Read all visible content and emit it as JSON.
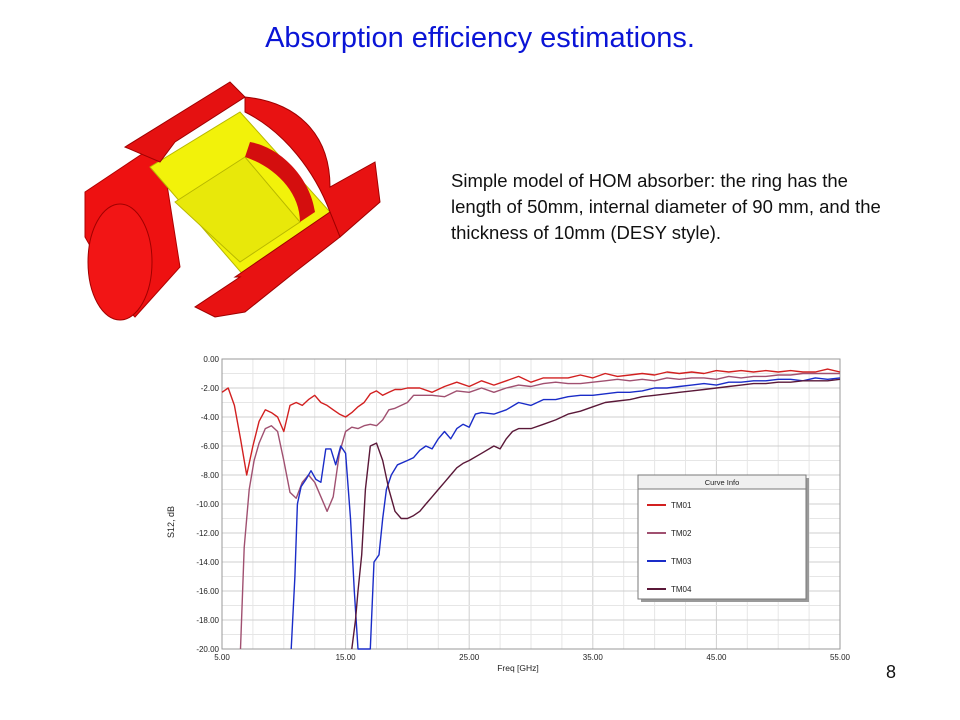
{
  "slide": {
    "title": "Absorption efficiency estimations.",
    "description": "Simple model of HOM absorber: the ring has the length of 50mm, internal diameter of 90 mm, and the thickness of 10mm (DESY style).",
    "page_number": "8"
  },
  "model": {
    "icon": "hom-absorber-cutaway-model",
    "colors": {
      "beampipe": "#ee1111",
      "absorber": "#f2f20a"
    }
  },
  "chart_data": {
    "type": "line",
    "xlabel": "Freq [GHz]",
    "ylabel": "S12, dB",
    "xlim": [
      5,
      55
    ],
    "ylim": [
      -20,
      0
    ],
    "x_ticks": [
      "5.00",
      "15.00",
      "25.00",
      "35.00",
      "45.00",
      "55.00"
    ],
    "y_ticks": [
      "0.00",
      "-2.00",
      "-4.00",
      "-6.00",
      "-8.00",
      "-10.00",
      "-12.00",
      "-14.00",
      "-16.00",
      "-18.00",
      "-20.00"
    ],
    "grid": true,
    "legend": {
      "title": "Curve Info",
      "placement": "center-right"
    },
    "series": [
      {
        "name": "TM01",
        "color": "#d22020",
        "points": [
          [
            5,
            -2.3
          ],
          [
            5.5,
            -2.0
          ],
          [
            6,
            -3.2
          ],
          [
            6.5,
            -5.5
          ],
          [
            7,
            -8.0
          ],
          [
            7.5,
            -6.0
          ],
          [
            8,
            -4.3
          ],
          [
            8.5,
            -3.5
          ],
          [
            9,
            -3.7
          ],
          [
            9.5,
            -4.0
          ],
          [
            10,
            -5.0
          ],
          [
            10.5,
            -3.2
          ],
          [
            11,
            -3.0
          ],
          [
            11.5,
            -3.2
          ],
          [
            12,
            -2.8
          ],
          [
            12.5,
            -2.5
          ],
          [
            13,
            -3.0
          ],
          [
            13.5,
            -3.2
          ],
          [
            14,
            -3.5
          ],
          [
            14.5,
            -3.8
          ],
          [
            15,
            -4.0
          ],
          [
            15.5,
            -3.7
          ],
          [
            16,
            -3.3
          ],
          [
            16.5,
            -3.0
          ],
          [
            17,
            -2.4
          ],
          [
            17.5,
            -2.2
          ],
          [
            18,
            -2.5
          ],
          [
            18.5,
            -2.3
          ],
          [
            19,
            -2.1
          ],
          [
            19.5,
            -2.1
          ],
          [
            20,
            -2.0
          ],
          [
            21,
            -2.0
          ],
          [
            22,
            -2.3
          ],
          [
            23,
            -1.9
          ],
          [
            24,
            -1.6
          ],
          [
            25,
            -1.9
          ],
          [
            26,
            -1.5
          ],
          [
            27,
            -1.8
          ],
          [
            28,
            -1.5
          ],
          [
            29,
            -1.2
          ],
          [
            30,
            -1.6
          ],
          [
            31,
            -1.3
          ],
          [
            32,
            -1.3
          ],
          [
            33,
            -1.3
          ],
          [
            34,
            -1.1
          ],
          [
            35,
            -1.3
          ],
          [
            36,
            -1.0
          ],
          [
            37,
            -1.2
          ],
          [
            38,
            -1.1
          ],
          [
            39,
            -1.0
          ],
          [
            40,
            -1.1
          ],
          [
            41,
            -0.9
          ],
          [
            42,
            -1.0
          ],
          [
            43,
            -0.9
          ],
          [
            44,
            -1.0
          ],
          [
            45,
            -0.8
          ],
          [
            46,
            -0.9
          ],
          [
            47,
            -0.8
          ],
          [
            48,
            -0.9
          ],
          [
            49,
            -0.8
          ],
          [
            50,
            -0.9
          ],
          [
            51,
            -0.8
          ],
          [
            52,
            -0.9
          ],
          [
            53,
            -0.9
          ],
          [
            54,
            -0.7
          ],
          [
            55,
            -0.9
          ]
        ]
      },
      {
        "name": "TM02",
        "color": "#a05070",
        "points": [
          [
            6.5,
            -20.0
          ],
          [
            6.8,
            -13.0
          ],
          [
            7.2,
            -9.0
          ],
          [
            7.6,
            -7.0
          ],
          [
            8,
            -5.8
          ],
          [
            8.5,
            -4.8
          ],
          [
            9,
            -4.6
          ],
          [
            9.5,
            -5.0
          ],
          [
            10,
            -7.0
          ],
          [
            10.5,
            -9.2
          ],
          [
            11,
            -9.6
          ],
          [
            11.5,
            -8.5
          ],
          [
            12,
            -8.0
          ],
          [
            12.5,
            -8.5
          ],
          [
            13,
            -9.5
          ],
          [
            13.5,
            -10.5
          ],
          [
            14,
            -9.5
          ],
          [
            14.5,
            -6.5
          ],
          [
            15,
            -5.0
          ],
          [
            15.5,
            -4.7
          ],
          [
            16,
            -4.8
          ],
          [
            16.5,
            -4.6
          ],
          [
            17,
            -4.5
          ],
          [
            17.5,
            -4.6
          ],
          [
            18,
            -4.2
          ],
          [
            18.5,
            -3.5
          ],
          [
            19,
            -3.4
          ],
          [
            19.5,
            -3.2
          ],
          [
            20,
            -3.0
          ],
          [
            20.5,
            -2.5
          ],
          [
            21,
            -2.5
          ],
          [
            22,
            -2.5
          ],
          [
            23,
            -2.6
          ],
          [
            24,
            -2.2
          ],
          [
            25,
            -2.3
          ],
          [
            26,
            -2.0
          ],
          [
            27,
            -2.3
          ],
          [
            28,
            -2.0
          ],
          [
            29,
            -1.8
          ],
          [
            30,
            -1.9
          ],
          [
            31,
            -1.7
          ],
          [
            32,
            -1.6
          ],
          [
            33,
            -1.7
          ],
          [
            34,
            -1.7
          ],
          [
            35,
            -1.6
          ],
          [
            36,
            -1.5
          ],
          [
            37,
            -1.4
          ],
          [
            38,
            -1.5
          ],
          [
            39,
            -1.4
          ],
          [
            40,
            -1.5
          ],
          [
            41,
            -1.3
          ],
          [
            42,
            -1.4
          ],
          [
            43,
            -1.3
          ],
          [
            44,
            -1.3
          ],
          [
            45,
            -1.4
          ],
          [
            46,
            -1.2
          ],
          [
            47,
            -1.3
          ],
          [
            48,
            -1.2
          ],
          [
            49,
            -1.2
          ],
          [
            50,
            -1.1
          ],
          [
            51,
            -1.1
          ],
          [
            52,
            -1.0
          ],
          [
            53,
            -1.0
          ],
          [
            54,
            -1.0
          ],
          [
            55,
            -1.0
          ]
        ]
      },
      {
        "name": "TM03",
        "color": "#1a2cc8",
        "points": [
          [
            10.6,
            -20.0
          ],
          [
            10.9,
            -15.0
          ],
          [
            11.1,
            -10.0
          ],
          [
            11.4,
            -8.8
          ],
          [
            11.8,
            -8.3
          ],
          [
            12.2,
            -7.7
          ],
          [
            12.6,
            -8.3
          ],
          [
            13,
            -8.5
          ],
          [
            13.4,
            -6.2
          ],
          [
            13.8,
            -6.2
          ],
          [
            14.2,
            -7.3
          ],
          [
            14.6,
            -6.0
          ],
          [
            15,
            -6.5
          ],
          [
            15.4,
            -11.0
          ],
          [
            15.7,
            -16.0
          ],
          [
            16,
            -20.0
          ],
          [
            17,
            -20.0
          ],
          [
            17.3,
            -14.0
          ],
          [
            17.7,
            -13.5
          ],
          [
            18,
            -11.0
          ],
          [
            18.3,
            -9.0
          ],
          [
            18.7,
            -8.0
          ],
          [
            19.2,
            -7.3
          ],
          [
            20,
            -7.0
          ],
          [
            20.5,
            -6.8
          ],
          [
            21,
            -6.3
          ],
          [
            21.5,
            -6.0
          ],
          [
            22,
            -6.2
          ],
          [
            22.5,
            -5.5
          ],
          [
            23,
            -5.0
          ],
          [
            23.5,
            -5.5
          ],
          [
            24,
            -4.8
          ],
          [
            24.5,
            -4.5
          ],
          [
            25,
            -4.7
          ],
          [
            25.5,
            -3.8
          ],
          [
            26,
            -3.7
          ],
          [
            27,
            -3.8
          ],
          [
            28,
            -3.5
          ],
          [
            29,
            -3.0
          ],
          [
            30,
            -3.2
          ],
          [
            31,
            -2.8
          ],
          [
            32,
            -2.8
          ],
          [
            33,
            -2.6
          ],
          [
            34,
            -2.5
          ],
          [
            35,
            -2.5
          ],
          [
            36,
            -2.4
          ],
          [
            37,
            -2.3
          ],
          [
            38,
            -2.3
          ],
          [
            39,
            -2.2
          ],
          [
            40,
            -2.0
          ],
          [
            41,
            -2.0
          ],
          [
            42,
            -1.9
          ],
          [
            43,
            -1.8
          ],
          [
            44,
            -1.7
          ],
          [
            45,
            -1.8
          ],
          [
            46,
            -1.6
          ],
          [
            47,
            -1.6
          ],
          [
            48,
            -1.5
          ],
          [
            49,
            -1.5
          ],
          [
            50,
            -1.4
          ],
          [
            51,
            -1.4
          ],
          [
            52,
            -1.5
          ],
          [
            53,
            -1.3
          ],
          [
            54,
            -1.4
          ],
          [
            55,
            -1.3
          ]
        ]
      },
      {
        "name": "TM04",
        "color": "#5a1838",
        "points": [
          [
            15.5,
            -20.0
          ],
          [
            15.8,
            -18.0
          ],
          [
            16,
            -16.0
          ],
          [
            16.3,
            -13.5
          ],
          [
            16.6,
            -9.0
          ],
          [
            17,
            -6.0
          ],
          [
            17.5,
            -5.8
          ],
          [
            18,
            -7.0
          ],
          [
            18.5,
            -9.0
          ],
          [
            19,
            -10.5
          ],
          [
            19.5,
            -11.0
          ],
          [
            20,
            -11.0
          ],
          [
            20.5,
            -10.8
          ],
          [
            21,
            -10.5
          ],
          [
            21.5,
            -10.0
          ],
          [
            22,
            -9.5
          ],
          [
            22.5,
            -9.0
          ],
          [
            23,
            -8.5
          ],
          [
            23.5,
            -8.0
          ],
          [
            24,
            -7.5
          ],
          [
            24.5,
            -7.2
          ],
          [
            25,
            -7.0
          ],
          [
            26,
            -6.5
          ],
          [
            27,
            -6.0
          ],
          [
            27.5,
            -6.2
          ],
          [
            28,
            -5.5
          ],
          [
            28.5,
            -5.0
          ],
          [
            29,
            -4.8
          ],
          [
            30,
            -4.8
          ],
          [
            31,
            -4.5
          ],
          [
            32,
            -4.2
          ],
          [
            33,
            -3.8
          ],
          [
            34,
            -3.6
          ],
          [
            35,
            -3.3
          ],
          [
            36,
            -3.0
          ],
          [
            37,
            -2.9
          ],
          [
            38,
            -2.8
          ],
          [
            39,
            -2.6
          ],
          [
            40,
            -2.5
          ],
          [
            41,
            -2.4
          ],
          [
            42,
            -2.3
          ],
          [
            43,
            -2.2
          ],
          [
            44,
            -2.1
          ],
          [
            45,
            -2.0
          ],
          [
            46,
            -1.9
          ],
          [
            47,
            -1.8
          ],
          [
            48,
            -1.7
          ],
          [
            49,
            -1.7
          ],
          [
            50,
            -1.6
          ],
          [
            51,
            -1.6
          ],
          [
            52,
            -1.5
          ],
          [
            53,
            -1.5
          ],
          [
            54,
            -1.5
          ],
          [
            55,
            -1.4
          ]
        ]
      }
    ]
  }
}
